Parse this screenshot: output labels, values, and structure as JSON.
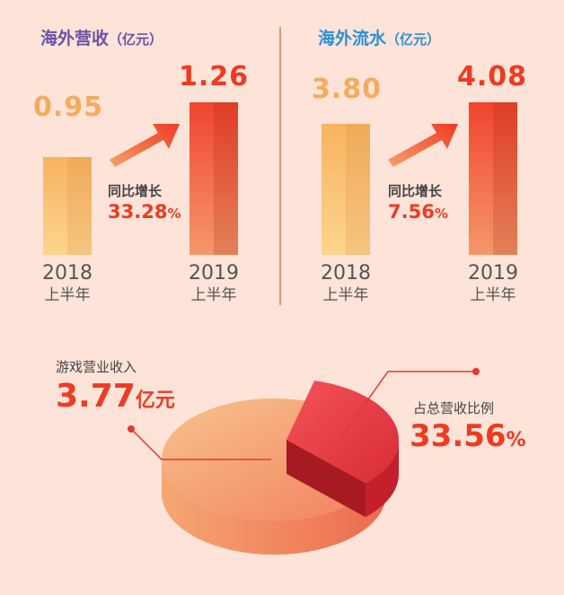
{
  "colors": {
    "title_purple": "#6a52a6",
    "title_blue": "#2d8fd6",
    "value_orange": "#f3ac5e",
    "value_red": "#ee3b22"
  },
  "chart_data": [
    {
      "type": "bar",
      "title": "海外营收",
      "unit": "（亿元）",
      "categories": [
        "2018",
        "2019"
      ],
      "subcategory": "上半年",
      "values": [
        0.95,
        1.26
      ],
      "value_labels": [
        "0.95",
        "1.26"
      ],
      "growth_label": "同比增长",
      "growth_value": "33.28",
      "growth_unit": "%"
    },
    {
      "type": "bar",
      "title": "海外流水",
      "unit": "（亿元）",
      "categories": [
        "2018",
        "2019"
      ],
      "subcategory": "上半年",
      "values": [
        3.8,
        4.08
      ],
      "value_labels": [
        "3.80",
        "4.08"
      ],
      "growth_label": "同比增长",
      "growth_value": "7.56",
      "growth_unit": "%"
    },
    {
      "type": "pie",
      "slices": [
        {
          "label": "游戏营业收入",
          "value_text": "3.77",
          "unit": "亿元"
        },
        {
          "label": "占总营收比例",
          "value": 33.56,
          "value_text": "33.56",
          "unit": "%"
        }
      ]
    }
  ]
}
